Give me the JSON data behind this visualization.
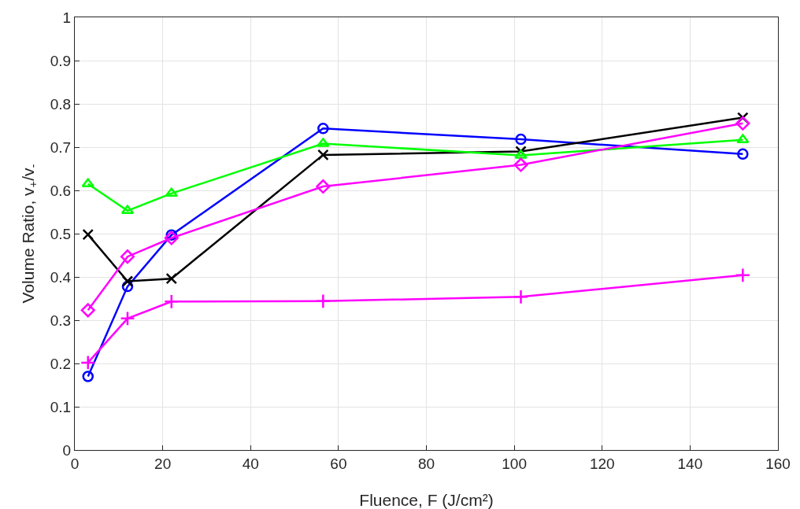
{
  "chart_data": {
    "type": "line",
    "xlabel": "Fluence, F (J/cm²)",
    "ylabel": "Volume Ratio, v$_{+}$/v$_{-}$",
    "x": [
      3,
      12,
      22,
      56.5,
      101.5,
      152
    ],
    "series": [
      {
        "color": "#0000ff",
        "marker": "circle",
        "values": [
          0.17,
          0.378,
          0.497,
          0.743,
          0.718,
          0.684
        ]
      },
      {
        "color": "#000000",
        "marker": "x",
        "values": [
          0.498,
          0.39,
          0.396,
          0.682,
          0.69,
          0.768
        ]
      },
      {
        "color": "#00ff00",
        "marker": "triangle",
        "values": [
          0.615,
          0.553,
          0.593,
          0.708,
          0.681,
          0.717
        ]
      },
      {
        "color": "#ff00ff",
        "marker": "diamond",
        "values": [
          0.323,
          0.447,
          0.49,
          0.609,
          0.659,
          0.755
        ]
      },
      {
        "color": "#ff00ff",
        "marker": "cross",
        "values": [
          0.202,
          0.304,
          0.343,
          0.344,
          0.354,
          0.404
        ]
      }
    ],
    "xlim": [
      0,
      160
    ],
    "xticks": [
      0,
      20,
      40,
      60,
      80,
      100,
      120,
      140,
      160
    ],
    "ylim": [
      0,
      1
    ],
    "yticks": [
      0,
      0.1,
      0.2,
      0.3,
      0.4,
      0.5,
      0.6,
      0.7,
      0.8,
      0.9,
      1
    ],
    "grid": true,
    "line_style": "solid"
  }
}
